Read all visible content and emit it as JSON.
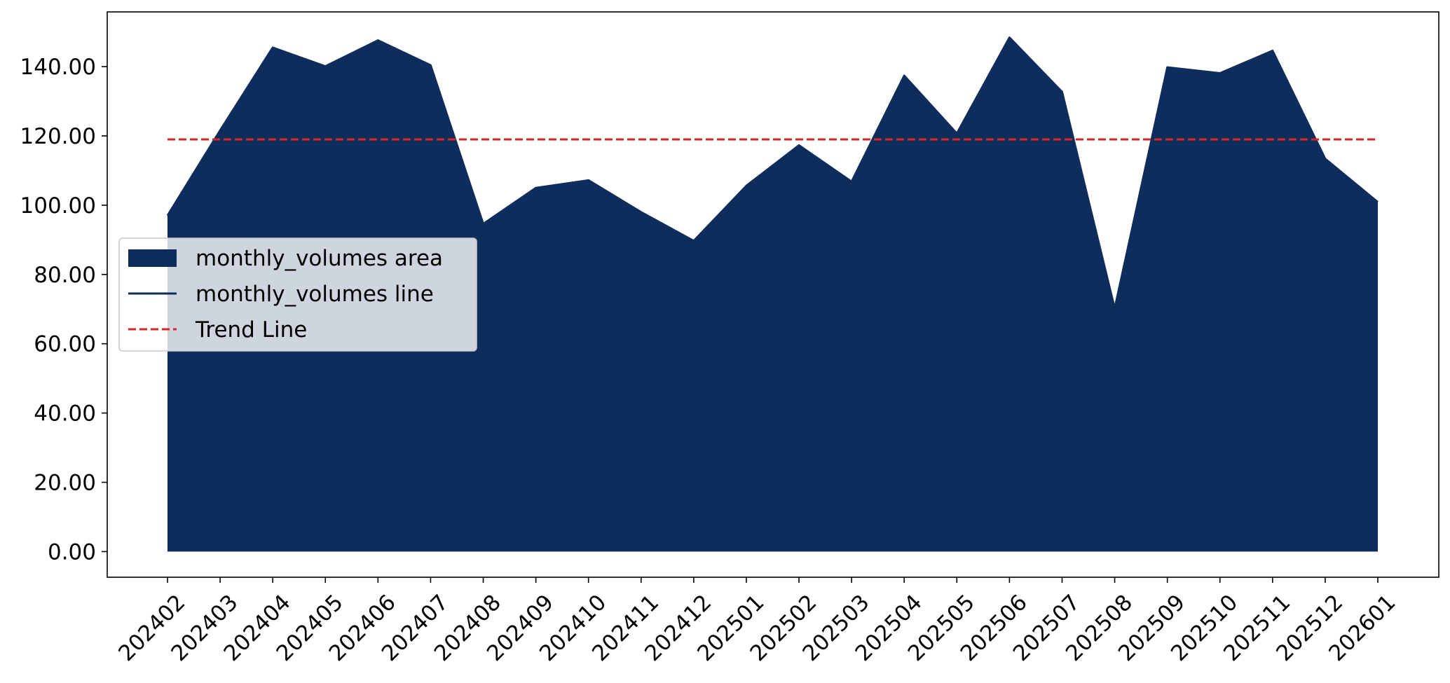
{
  "chart_data": {
    "type": "area",
    "categories": [
      "202402",
      "202403",
      "202404",
      "202405",
      "202406",
      "202407",
      "202408",
      "202409",
      "202410",
      "202411",
      "202412",
      "202501",
      "202502",
      "202503",
      "202504",
      "202505",
      "202506",
      "202507",
      "202508",
      "202509",
      "202510",
      "202511",
      "202512",
      "202601"
    ],
    "series": [
      {
        "name": "monthly_volumes area",
        "kind": "area",
        "color": "#0e2d5c",
        "values": [
          97,
          121.6,
          145.5,
          140.1,
          147.6,
          140.4,
          94.6,
          105,
          107.2,
          98,
          89.7,
          105.6,
          117.3,
          106.8,
          137.4,
          120.7,
          148.4,
          132.7,
          70.2,
          139.8,
          138.1,
          144.6,
          113.4,
          100.9
        ]
      },
      {
        "name": "monthly_volumes line",
        "kind": "line",
        "color": "#0e2d5c",
        "values": [
          97,
          121.6,
          145.5,
          140.1,
          147.6,
          140.4,
          94.6,
          105,
          107.2,
          98,
          89.7,
          105.6,
          117.3,
          106.8,
          137.4,
          120.7,
          148.4,
          132.7,
          70.2,
          139.8,
          138.1,
          144.6,
          113.4,
          100.9
        ]
      },
      {
        "name": "Trend Line",
        "kind": "dashed-line",
        "color": "#d62728",
        "value": 119
      }
    ],
    "y_ticks": [
      "0.00",
      "20.00",
      "40.00",
      "60.00",
      "80.00",
      "100.00",
      "120.00",
      "140.00"
    ],
    "y_tick_values": [
      0,
      20,
      40,
      60,
      80,
      100,
      120,
      140
    ],
    "ylim": [
      -7.4,
      155.8
    ],
    "title": "",
    "xlabel": "",
    "ylabel": "",
    "grid": false,
    "legend_position": "center-left",
    "x_tick_rotation": 45
  }
}
